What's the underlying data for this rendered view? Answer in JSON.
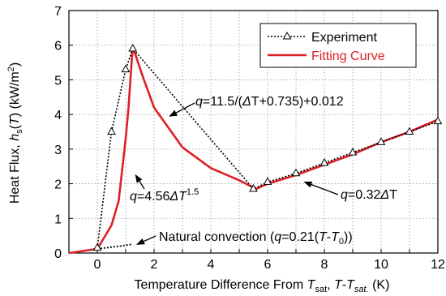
{
  "chart_data": {
    "type": "line",
    "xlabel": "Temperature Difference From Tsat, T-Tsat. (K)",
    "xlabel_parts": {
      "prefix": "Temperature Difference From ",
      "T1": "T",
      "sub1": "sat",
      "mid": ", ",
      "T2": "T",
      "dash": "-",
      "T3": "T",
      "sub2": "sat.",
      "unit": " (K)"
    },
    "ylabel": "Heat Flux, hs(T) (kW/m2)",
    "ylabel_parts": {
      "prefix": "Heat Flux, ",
      "h": "h",
      "sub": "s",
      "arg_open": "(",
      "T": "T",
      "arg_close": ")",
      "unit": " (kW/m",
      "sup": "2",
      "unit_close": ")"
    },
    "xlim": [
      -1,
      12
    ],
    "ylim": [
      0,
      7
    ],
    "xticks": [
      0,
      2,
      4,
      6,
      8,
      10,
      12
    ],
    "yticks": [
      0,
      1,
      2,
      3,
      4,
      5,
      6,
      7
    ],
    "grid": "dotted",
    "legend_position": "top-right",
    "colors": {
      "experiment": "#000000",
      "fitting": "#dd1f26",
      "natural": "#000000"
    },
    "series": [
      {
        "name": "Experiment",
        "style": "dotted-triangle",
        "x": [
          0.0,
          0.5,
          1.0,
          1.25,
          5.5,
          6.0,
          7.0,
          8.0,
          9.0,
          10.0,
          11.0,
          12.0
        ],
        "y": [
          0.15,
          3.5,
          5.3,
          5.9,
          1.85,
          2.05,
          2.3,
          2.6,
          2.9,
          3.2,
          3.5,
          3.8
        ]
      },
      {
        "name": "Fitting Curve",
        "style": "solid",
        "x": [
          -1.0,
          0.0,
          0.5,
          0.75,
          1.0,
          1.1,
          1.2,
          1.25,
          1.6,
          2.0,
          3.0,
          4.0,
          5.0,
          5.6,
          6.0,
          7.0,
          8.0,
          9.0,
          10.0,
          11.0,
          12.0
        ],
        "y": [
          0.0,
          0.12,
          0.8,
          1.5,
          3.3,
          4.2,
          5.4,
          5.95,
          5.1,
          4.2,
          3.05,
          2.45,
          2.1,
          1.85,
          2.0,
          2.25,
          2.55,
          2.85,
          3.2,
          3.5,
          3.85
        ]
      },
      {
        "style": "dotted",
        "x": [
          0.0,
          0.3,
          0.6,
          0.9,
          1.2
        ],
        "y": [
          0.12,
          0.15,
          0.18,
          0.21,
          0.25
        ]
      }
    ],
    "annotations": [
      {
        "id": "a1",
        "q": "q",
        "expr": "=11.5/(",
        "delta": "Δ",
        "rest": "T+0.735)+0.012"
      },
      {
        "id": "a2",
        "q": "q",
        "expr": "=4.56",
        "delta": "Δ",
        "T": "T",
        "sup": "1.5"
      },
      {
        "id": "a3",
        "q": "q",
        "expr": "=0.32",
        "delta": "Δ",
        "rest": "T"
      },
      {
        "id": "a4",
        "prefix": "Natural convection (",
        "q": "q",
        "expr": "=0.21(",
        "T1": "T",
        "dash": "-",
        "T2": "T",
        "sub": "0",
        "close": "))"
      }
    ]
  }
}
